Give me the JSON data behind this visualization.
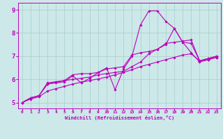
{
  "xlabel": "Windchill (Refroidissement éolien,°C)",
  "xlim": [
    -0.5,
    23.5
  ],
  "ylim": [
    4.75,
    9.3
  ],
  "yticks": [
    5,
    6,
    7,
    8,
    9
  ],
  "xticks": [
    0,
    1,
    2,
    3,
    4,
    5,
    6,
    7,
    8,
    9,
    10,
    11,
    12,
    13,
    14,
    15,
    16,
    17,
    18,
    19,
    20,
    21,
    22,
    23
  ],
  "background_color": "#cce8e8",
  "line_color": "#bb00bb",
  "grid_color": "#aacccc",
  "lines": [
    {
      "x": [
        0,
        1,
        2,
        3,
        4,
        5,
        6,
        7,
        8,
        9,
        10,
        11,
        12,
        13,
        14,
        15,
        16,
        17,
        18,
        19,
        20,
        21,
        22,
        23
      ],
      "y": [
        5.0,
        5.2,
        5.3,
        5.8,
        5.85,
        5.9,
        6.15,
        5.85,
        6.05,
        6.3,
        6.5,
        5.55,
        6.45,
        7.0,
        8.35,
        8.95,
        8.95,
        8.5,
        8.2,
        7.6,
        7.15,
        6.75,
        6.85,
        6.95
      ]
    },
    {
      "x": [
        0,
        1,
        2,
        3,
        4,
        5,
        6,
        7,
        8,
        9,
        10,
        11,
        12,
        13,
        14,
        15,
        16,
        17,
        18,
        19,
        20,
        21,
        22,
        23
      ],
      "y": [
        5.0,
        5.2,
        5.3,
        5.85,
        5.9,
        5.95,
        6.2,
        6.25,
        6.25,
        6.3,
        6.45,
        6.5,
        6.55,
        7.05,
        7.15,
        7.2,
        7.3,
        7.5,
        8.2,
        7.6,
        7.55,
        6.8,
        6.85,
        6.95
      ]
    },
    {
      "x": [
        0,
        1,
        2,
        3,
        4,
        5,
        6,
        7,
        8,
        9,
        10,
        11,
        12,
        13,
        14,
        15,
        16,
        17,
        18,
        19,
        20,
        21,
        22,
        23
      ],
      "y": [
        5.0,
        5.2,
        5.3,
        5.8,
        5.88,
        5.95,
        6.0,
        6.05,
        6.1,
        6.2,
        6.25,
        6.3,
        6.35,
        6.55,
        6.75,
        7.1,
        7.3,
        7.55,
        7.6,
        7.65,
        7.7,
        6.8,
        6.9,
        7.0
      ]
    },
    {
      "x": [
        0,
        1,
        2,
        3,
        4,
        5,
        6,
        7,
        8,
        9,
        10,
        11,
        12,
        13,
        14,
        15,
        16,
        17,
        18,
        19,
        20,
        21,
        22,
        23
      ],
      "y": [
        5.0,
        5.15,
        5.25,
        5.5,
        5.6,
        5.7,
        5.8,
        5.88,
        5.95,
        6.02,
        6.1,
        6.2,
        6.3,
        6.42,
        6.55,
        6.65,
        6.75,
        6.85,
        6.95,
        7.05,
        7.1,
        6.8,
        6.9,
        7.0
      ]
    }
  ]
}
